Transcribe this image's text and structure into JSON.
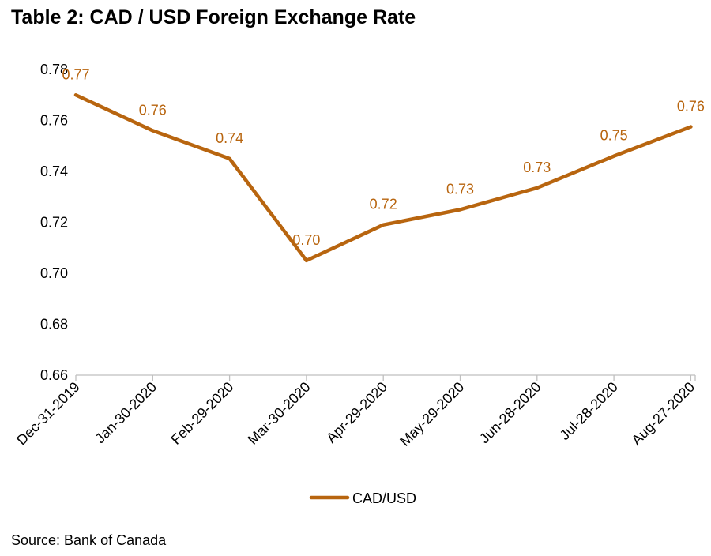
{
  "title": "Table 2: CAD / USD Foreign Exchange Rate",
  "source": "Source: Bank of Canada",
  "colors": {
    "series": "#B8650F",
    "axis": "#BFBFBF",
    "text": "#000000"
  },
  "chart_data": {
    "type": "line",
    "title": "Table 2: CAD / USD Foreign Exchange Rate",
    "xlabel": "",
    "ylabel": "",
    "ylim": [
      0.66,
      0.78
    ],
    "yticks": [
      0.66,
      0.68,
      0.7,
      0.72,
      0.74,
      0.76,
      0.78
    ],
    "ytick_labels": [
      "0.66",
      "0.68",
      "0.70",
      "0.72",
      "0.74",
      "0.76",
      "0.78"
    ],
    "grid": false,
    "legend": "bottom",
    "categories": [
      "Dec-31-2019",
      "Jan-30-2020",
      "Feb-29-2020",
      "Mar-30-2020",
      "Apr-29-2020",
      "May-29-2020",
      "Jun-28-2020",
      "Jul-28-2020",
      "Aug-27-2020"
    ],
    "series": [
      {
        "name": "CAD/USD",
        "color": "#B8650F",
        "values": [
          0.77,
          0.756,
          0.745,
          0.705,
          0.719,
          0.725,
          0.7335,
          0.746,
          0.7575
        ],
        "labels": [
          "0.77",
          "0.76",
          "0.74",
          "0.70",
          "0.72",
          "0.73",
          "0.73",
          "0.75",
          "0.76"
        ]
      }
    ]
  }
}
